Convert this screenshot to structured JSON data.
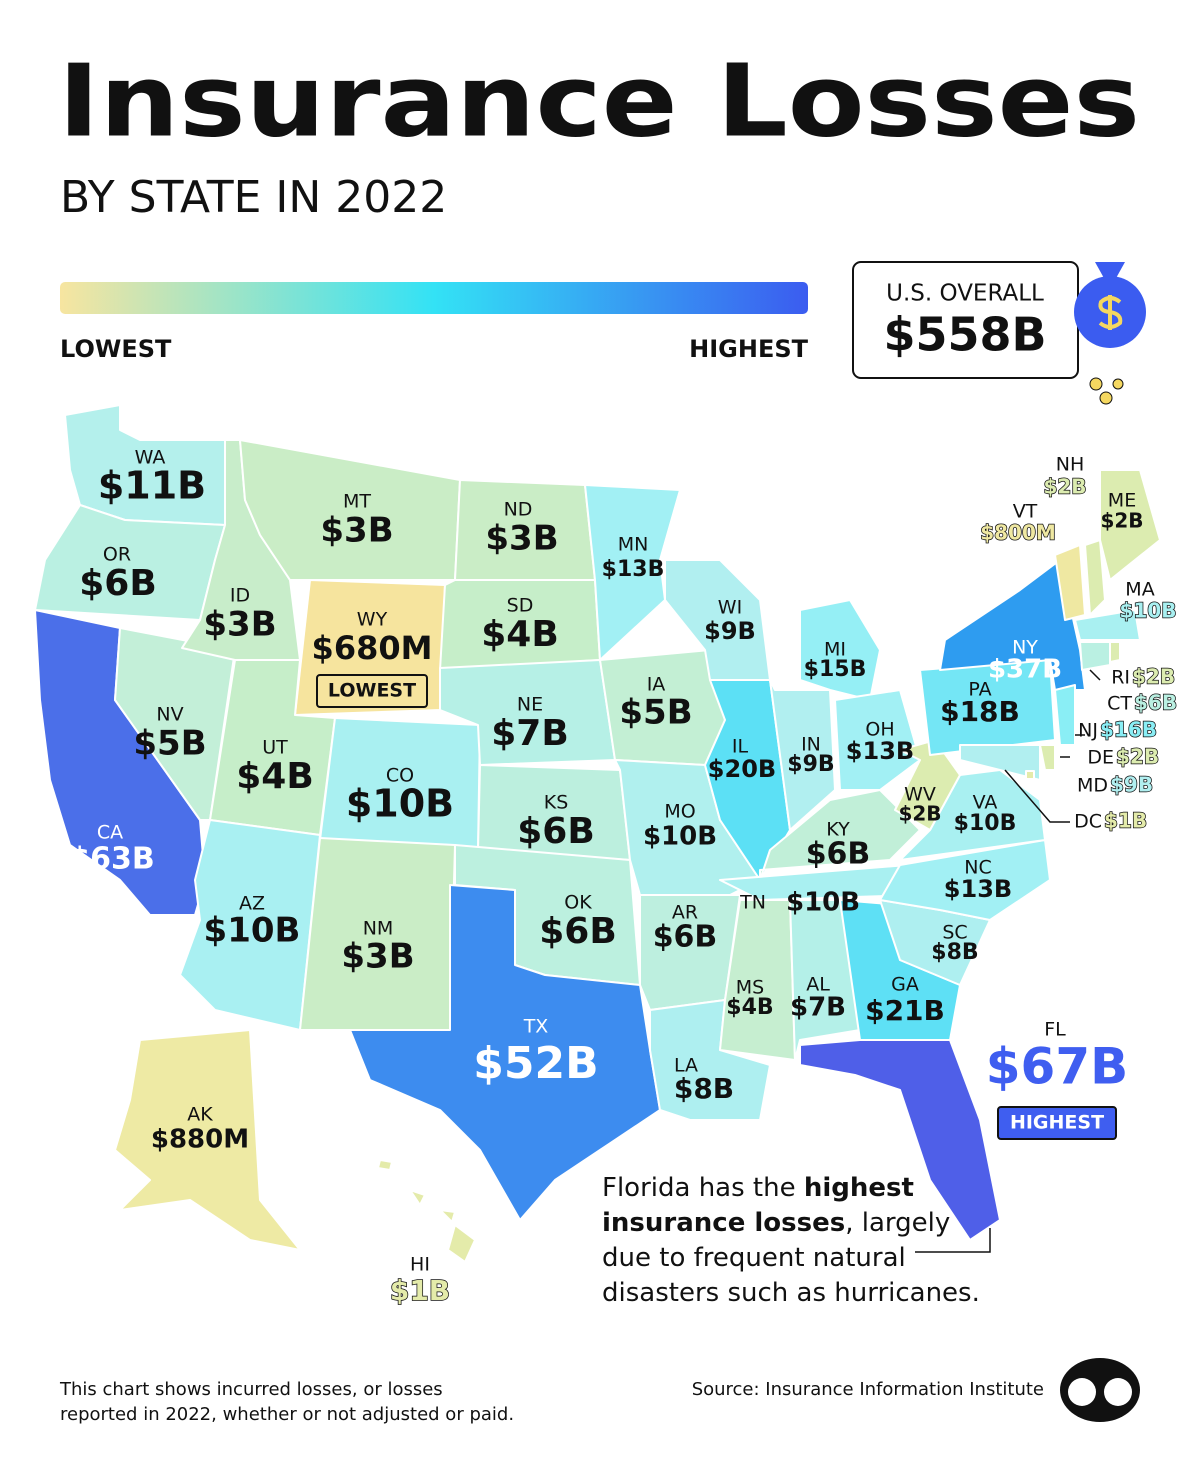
{
  "title": "Insurance Losses",
  "subtitle": "BY STATE IN 2022",
  "legend": {
    "low": "LOWEST",
    "high": "HIGHEST"
  },
  "overall": {
    "label": "U.S. OVERALL",
    "value": "$558B"
  },
  "states": [
    {
      "abbr": "WA",
      "value": "$11B",
      "color": "#b4f0ec"
    },
    {
      "abbr": "OR",
      "value": "$6B",
      "color": "#baf0e2"
    },
    {
      "abbr": "CA",
      "value": "$63B",
      "color": "#4b6fe9"
    },
    {
      "abbr": "NV",
      "value": "$5B",
      "color": "#c3efd8"
    },
    {
      "abbr": "ID",
      "value": "$3B",
      "color": "#c8edca"
    },
    {
      "abbr": "MT",
      "value": "$3B",
      "color": "#caedc6"
    },
    {
      "abbr": "WY",
      "value": "$680M",
      "color": "#f6e49e",
      "tag": "LOWEST"
    },
    {
      "abbr": "UT",
      "value": "$4B",
      "color": "#c6eec9"
    },
    {
      "abbr": "CO",
      "value": "$10B",
      "color": "#a9f0f1"
    },
    {
      "abbr": "AZ",
      "value": "$10B",
      "color": "#a9f0f2"
    },
    {
      "abbr": "NM",
      "value": "$3B",
      "color": "#caedc6"
    },
    {
      "abbr": "ND",
      "value": "$3B",
      "color": "#caedc6"
    },
    {
      "abbr": "SD",
      "value": "$4B",
      "color": "#c6eec9"
    },
    {
      "abbr": "NE",
      "value": "$7B",
      "color": "#b6f0e6"
    },
    {
      "abbr": "KS",
      "value": "$6B",
      "color": "#bcefde"
    },
    {
      "abbr": "OK",
      "value": "$6B",
      "color": "#bcf0df"
    },
    {
      "abbr": "TX",
      "value": "$52B",
      "color": "#3d8cef"
    },
    {
      "abbr": "MN",
      "value": "$13B",
      "color": "#a2f0f4"
    },
    {
      "abbr": "IA",
      "value": "$5B",
      "color": "#c3efd4"
    },
    {
      "abbr": "MO",
      "value": "$10B",
      "color": "#b0f0ee"
    },
    {
      "abbr": "AR",
      "value": "$6B",
      "color": "#bdefdf"
    },
    {
      "abbr": "LA",
      "value": "$8B",
      "color": "#aeeff0"
    },
    {
      "abbr": "WI",
      "value": "$9B",
      "color": "#b1eff0"
    },
    {
      "abbr": "IL",
      "value": "$20B",
      "color": "#5ce0f5"
    },
    {
      "abbr": "IN",
      "value": "$9B",
      "color": "#b1eff0"
    },
    {
      "abbr": "MI",
      "value": "$15B",
      "color": "#95eff5"
    },
    {
      "abbr": "OH",
      "value": "$13B",
      "color": "#a2f0f4"
    },
    {
      "abbr": "KY",
      "value": "$6B",
      "color": "#c1efd8"
    },
    {
      "abbr": "TN",
      "value": "$10B",
      "color": "#a9f0f1"
    },
    {
      "abbr": "MS",
      "value": "$4B",
      "color": "#c6eed0"
    },
    {
      "abbr": "AL",
      "value": "$7B",
      "color": "#b4f0e8"
    },
    {
      "abbr": "GA",
      "value": "$21B",
      "color": "#5ee0f5"
    },
    {
      "abbr": "FL",
      "value": "$67B",
      "color": "#4f5fe8",
      "tag": "HIGHEST"
    },
    {
      "abbr": "SC",
      "value": "$8B",
      "color": "#aeeff0"
    },
    {
      "abbr": "NC",
      "value": "$13B",
      "color": "#a2f0f4"
    },
    {
      "abbr": "VA",
      "value": "$10B",
      "color": "#a9f0f1"
    },
    {
      "abbr": "WV",
      "value": "$2B",
      "color": "#dcecb0"
    },
    {
      "abbr": "PA",
      "value": "$18B",
      "color": "#74e6f5"
    },
    {
      "abbr": "NY",
      "value": "$37B",
      "color": "#2e9cf0"
    },
    {
      "abbr": "VT",
      "value": "$800M",
      "color": "#efe8a2"
    },
    {
      "abbr": "NH",
      "value": "$2B",
      "color": "#dcecb0"
    },
    {
      "abbr": "ME",
      "value": "$2B",
      "color": "#dcecb0"
    },
    {
      "abbr": "MA",
      "value": "$10B",
      "color": "#a9f0f1"
    },
    {
      "abbr": "CT",
      "value": "$6B",
      "color": "#baf0e2"
    },
    {
      "abbr": "RI",
      "value": "$2B",
      "color": "#dcecb0"
    },
    {
      "abbr": "NJ",
      "value": "$16B",
      "color": "#8aeef5"
    },
    {
      "abbr": "DE",
      "value": "$2B",
      "color": "#dcecb0"
    },
    {
      "abbr": "MD",
      "value": "$9B",
      "color": "#b1eff0"
    },
    {
      "abbr": "DC",
      "value": "$1B",
      "color": "#e4ebaa"
    },
    {
      "abbr": "AK",
      "value": "$880M",
      "color": "#eeeaa4"
    },
    {
      "abbr": "HI",
      "value": "$1B",
      "color": "#e4ebaa"
    }
  ],
  "note": [
    [
      {
        "text": "Florida has the "
      },
      {
        "text": "highest",
        "bold": true
      }
    ],
    [
      {
        "text": "insurance losses",
        "bold": true
      },
      {
        "text": ", largely"
      }
    ],
    [
      {
        "text": "due to frequent natural"
      }
    ],
    [
      {
        "text": "disasters such as hurricanes."
      }
    ]
  ],
  "footnote": [
    "This chart shows incurred losses, or losses",
    "reported in 2022, whether or not adjusted or paid."
  ],
  "source": "Source: Insurance Information Institute"
}
